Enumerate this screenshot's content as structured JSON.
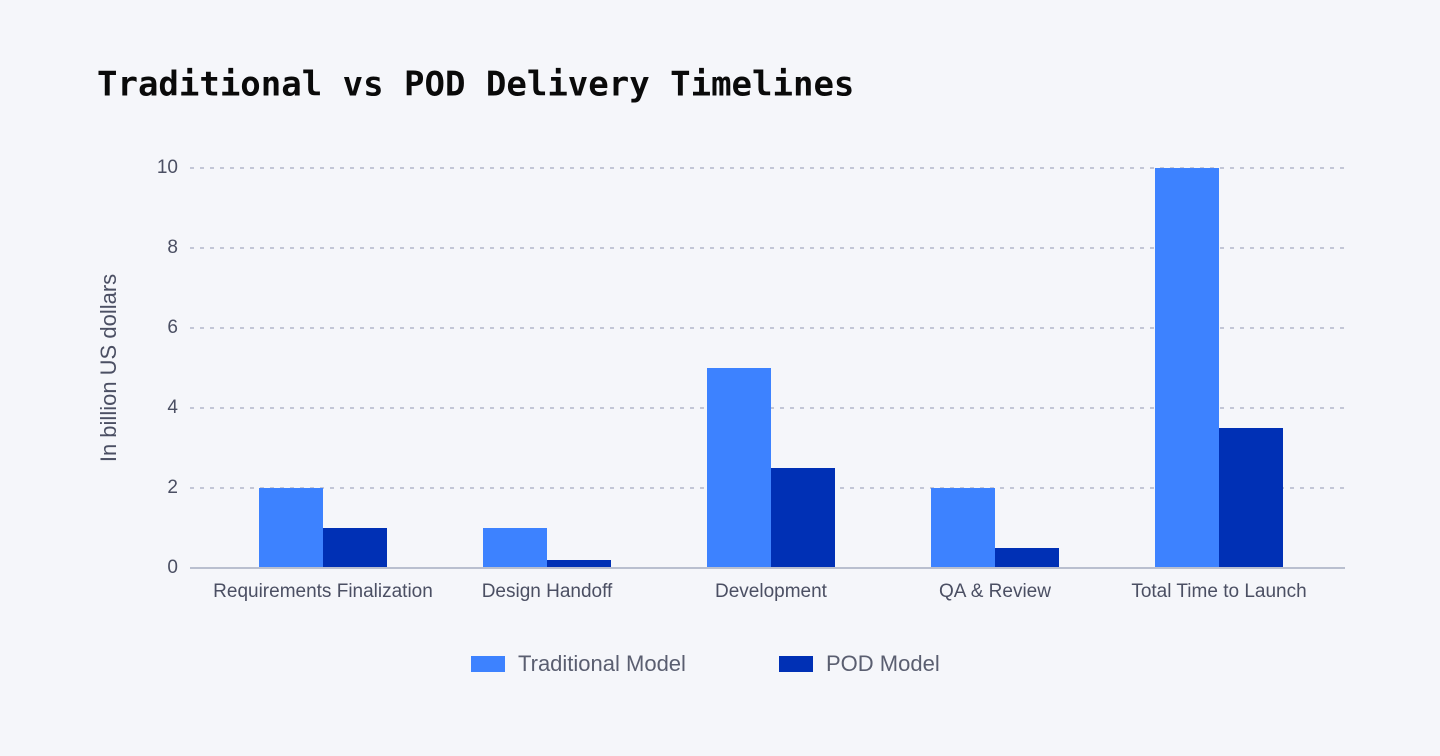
{
  "chart_data": {
    "type": "bar",
    "title": "Traditional vs POD Delivery Timelines",
    "y_label": "In billion US dollars",
    "categories": [
      "Requirements Finalization",
      "Design Handoff",
      "Development",
      "QA & Review",
      "Total Time to Launch"
    ],
    "series": [
      {
        "name": "Traditional Model",
        "color": "#3d82ff",
        "values": [
          2,
          1,
          5,
          2,
          10
        ]
      },
      {
        "name": "POD Model",
        "color": "#0030b5",
        "values": [
          1,
          0.2,
          2.5,
          0.5,
          3.5
        ]
      }
    ],
    "ylim": [
      0,
      10
    ],
    "yticks": [
      0,
      2,
      4,
      6,
      8,
      10
    ],
    "grid": true,
    "legend": "bottom"
  }
}
